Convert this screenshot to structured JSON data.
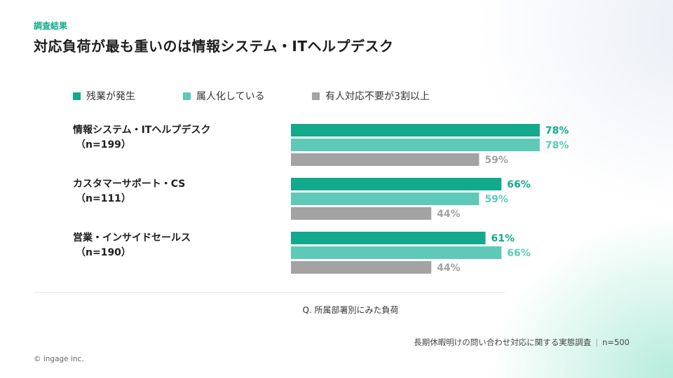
{
  "header": {
    "section_label": "調査結果",
    "title": "対応負荷が最も重いのは情報システム・ITヘルプデスク"
  },
  "chart_data": {
    "type": "bar",
    "orientation": "horizontal",
    "categories": [
      {
        "name": "情報システム・ITヘルプデスク",
        "n": "（n=199）"
      },
      {
        "name": "カスタマーサポート・CS",
        "n": "（n=111）"
      },
      {
        "name": "営業・インサイドセールス",
        "n": "（n=190）"
      }
    ],
    "series": [
      {
        "name": "残業が発生",
        "color": "#13a98c",
        "label_color": "#13a98c",
        "values": [
          78,
          66,
          61
        ]
      },
      {
        "name": "属人化している",
        "color": "#5fc9b8",
        "label_color": "#5fc9b8",
        "values": [
          78,
          59,
          66
        ]
      },
      {
        "name": "有人対応不要が3割以上",
        "color": "#a3a3a3",
        "label_color": "#a3a3a3",
        "values": [
          59,
          44,
          44
        ]
      }
    ],
    "value_suffix": "%",
    "xlim": [
      0,
      100
    ],
    "grid": false,
    "legend_position": "top"
  },
  "question": "Q. 所属部署別にみた負荷",
  "source": {
    "text": "長期休暇明けの問い合わせ対応に関する実態調査",
    "separator": "|",
    "n": "n=500"
  },
  "copyright": "© ingage inc."
}
